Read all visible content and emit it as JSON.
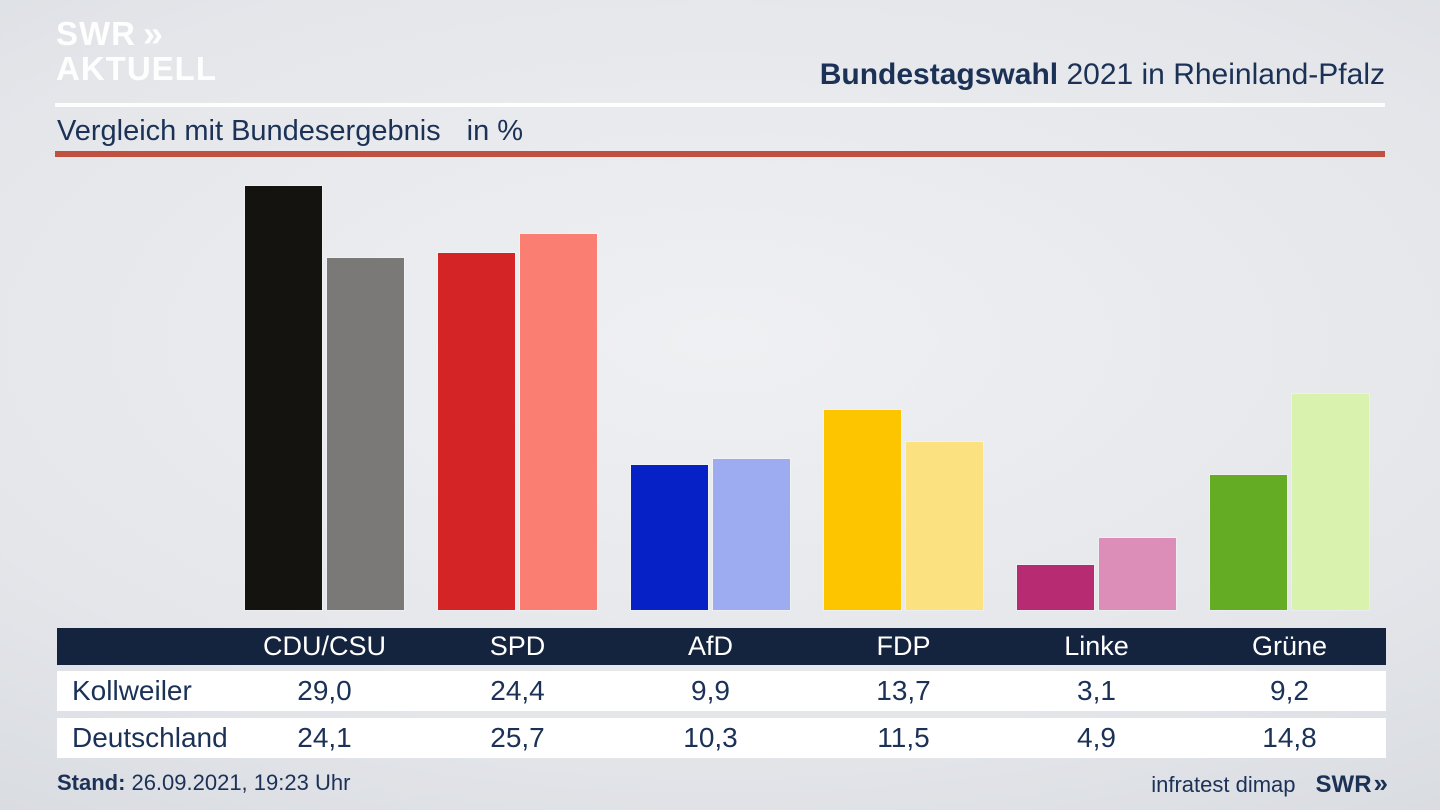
{
  "brand": {
    "line1": "SWR",
    "chevron": "»",
    "line2": "AKTUELL"
  },
  "header": {
    "title_bold": "Bundestagswahl",
    "title_rest": " 2021 in Rheinland-Pfalz"
  },
  "subtitle": {
    "text": "Vergleich mit Bundesergebnis",
    "unit": "in %"
  },
  "table": {
    "row_labels": [
      "Kollweiler",
      "Deutschland"
    ],
    "values_display": [
      [
        "29,0",
        "24,4",
        "9,9",
        "13,7",
        "3,1",
        "9,2"
      ],
      [
        "24,1",
        "25,7",
        "10,3",
        "11,5",
        "4,9",
        "14,8"
      ]
    ]
  },
  "footer": {
    "stand_label": "Stand:",
    "stand_value": "26.09.2021, 19:23 Uhr",
    "source": "infratest dimap",
    "swr": "SWR",
    "swr_chevron": "»"
  },
  "chart_data": {
    "type": "bar",
    "title": "Bundestagswahl 2021 in Rheinland-Pfalz",
    "subtitle": "Vergleich mit Bundesergebnis in %",
    "unit": "%",
    "categories": [
      "CDU/CSU",
      "SPD",
      "AfD",
      "FDP",
      "Linke",
      "Grüne"
    ],
    "series": [
      {
        "name": "Kollweiler",
        "values": [
          29.0,
          24.4,
          9.9,
          13.7,
          3.1,
          9.2
        ]
      },
      {
        "name": "Deutschland",
        "values": [
          24.1,
          25.7,
          10.3,
          11.5,
          4.9,
          14.8
        ]
      }
    ],
    "colors": {
      "CDU/CSU": [
        "#151310",
        "#7b7977"
      ],
      "SPD": [
        "#d52425",
        "#fb7e72"
      ],
      "AfD": [
        "#0621c6",
        "#9dacf1"
      ],
      "FDP": [
        "#fdc500",
        "#fce180"
      ],
      "Linke": [
        "#b62b72",
        "#dc8eb9"
      ],
      "Grüne": [
        "#65ac25",
        "#d9f2ae"
      ]
    },
    "ylim": [
      0,
      30
    ],
    "grid": false,
    "legend_position": "table-below",
    "accent_line_color": "#c05140",
    "navy_text_color": "#1b3156",
    "table_header_bg": "#15243e"
  }
}
